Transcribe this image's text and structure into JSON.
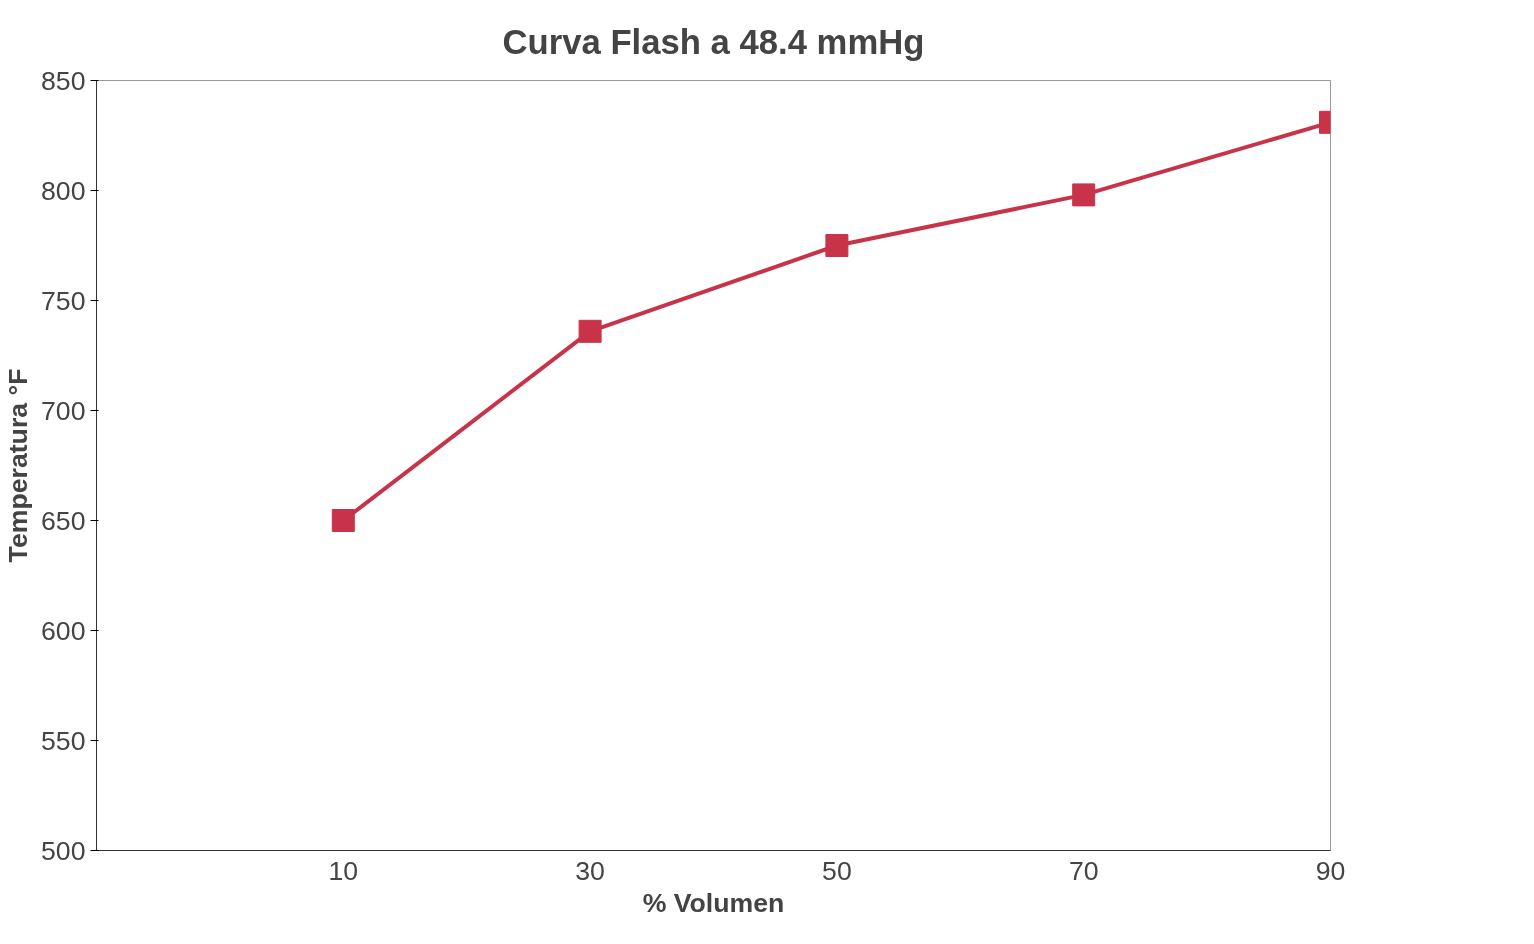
{
  "chart_data": {
    "type": "line",
    "title": "Curva Flash a 48.4 mmHg",
    "xlabel": "% Volumen",
    "ylabel": "Temperatura °F",
    "x": [
      10,
      30,
      50,
      70,
      90
    ],
    "series": [
      {
        "color": "#c8334a",
        "values": [
          650,
          736,
          775,
          798,
          831
        ]
      }
    ],
    "xlim": [
      -10,
      90
    ],
    "xticks": [
      10,
      30,
      50,
      70,
      90
    ],
    "ylim": [
      500,
      850
    ],
    "yticks": [
      500,
      550,
      600,
      650,
      700,
      750,
      800,
      850
    ],
    "marker": "square",
    "line_style": "solid"
  }
}
